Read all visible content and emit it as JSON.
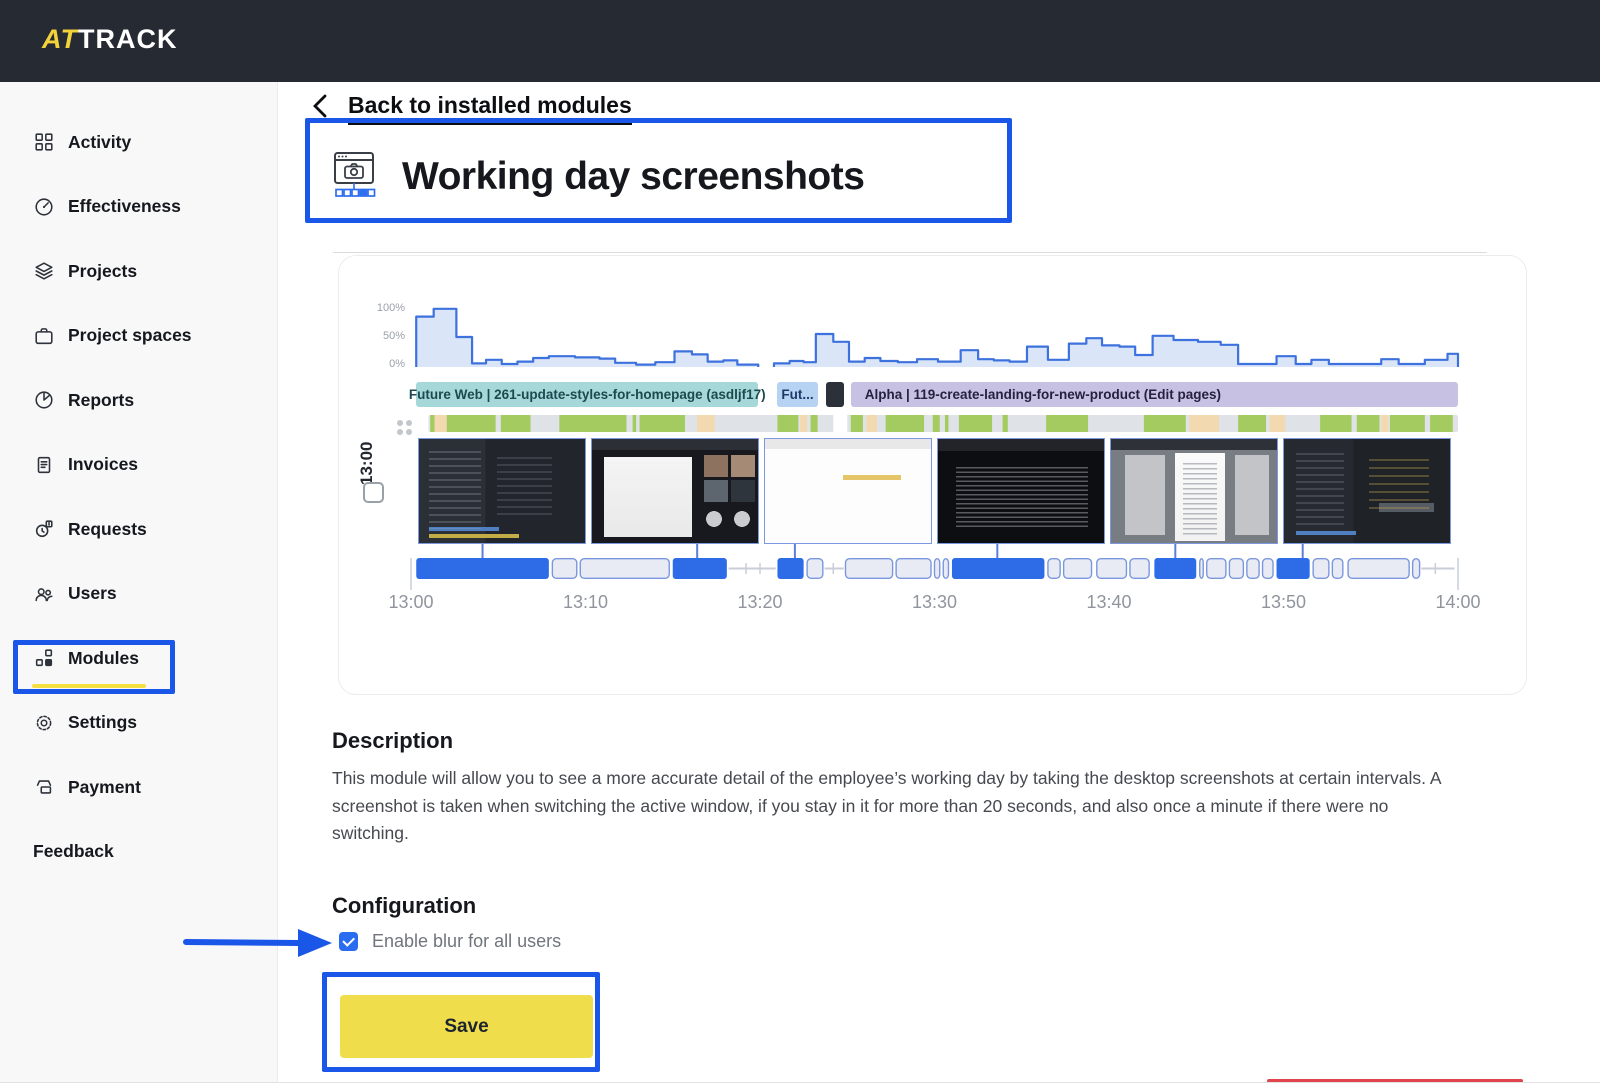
{
  "app": {
    "logo_primary": "AT",
    "logo_secondary": "TRACK"
  },
  "sidebar": {
    "items": [
      {
        "label": "Activity",
        "icon": "grid-icon"
      },
      {
        "label": "Effectiveness",
        "icon": "gauge-icon"
      },
      {
        "label": "Projects",
        "icon": "layers-icon"
      },
      {
        "label": "Project spaces",
        "icon": "briefcase-icon"
      },
      {
        "label": "Reports",
        "icon": "pie-chart-icon"
      },
      {
        "label": "Invoices",
        "icon": "invoice-icon"
      },
      {
        "label": "Requests",
        "icon": "request-clock-icon"
      },
      {
        "label": "Users",
        "icon": "users-icon"
      },
      {
        "label": "Modules",
        "icon": "modules-icon",
        "active": true
      },
      {
        "label": "Settings",
        "icon": "gear-icon"
      },
      {
        "label": "Payment",
        "icon": "payment-icon"
      }
    ],
    "footer_link": "Feedback"
  },
  "main": {
    "back_link": "Back to installed modules",
    "module_title": "Working day screenshots",
    "preview": {
      "row_time_label": "13:00",
      "y_axis_labels": [
        "100%",
        "50%",
        "0%"
      ],
      "time_labels": [
        "13:00",
        "13:10",
        "13:20",
        "13:30",
        "13:40",
        "13:50",
        "14:00"
      ],
      "tasks": [
        {
          "label": "Future Web | 261-update-styles-for-homepage (asdljf17)",
          "color": "#a6d8d9",
          "text_color": "#1d4a4e",
          "from": 0.3,
          "to": 19.9,
          "align": "center"
        },
        {
          "label": "Fut...",
          "color": "#b7d3f4",
          "text_color": "#1e3a66",
          "from": 21.0,
          "to": 23.3,
          "align": "center"
        },
        {
          "label": "",
          "color": "#2c3038",
          "text_color": "#ffffff",
          "from": 23.8,
          "to": 24.8,
          "align": "center"
        },
        {
          "label": "Alpha | 119-create-landing-for-new-product (Edit pages)",
          "color": "#c7c1e3",
          "text_color": "#27213f",
          "from": 25.2,
          "to": 60,
          "align": "left"
        }
      ],
      "chart_data": {
        "type": "step-area",
        "x_unit": "minutes after 13:00",
        "y_unit": "activity percent",
        "ylim": [
          0,
          100
        ],
        "segments": [
          {
            "end": 19.9,
            "points": [
              [
                0.3,
                84
              ],
              [
                1.3,
                97
              ],
              [
                2.6,
                50
              ],
              [
                3.5,
                6
              ],
              [
                4.3,
                12
              ],
              [
                5.2,
                5
              ],
              [
                6.1,
                9
              ],
              [
                7.0,
                15
              ],
              [
                7.9,
                18
              ],
              [
                9.4,
                16
              ],
              [
                10.8,
                14
              ],
              [
                11.7,
                7
              ],
              [
                12.9,
                4
              ],
              [
                14.0,
                8
              ],
              [
                15.1,
                26
              ],
              [
                16.1,
                21
              ],
              [
                17.0,
                9
              ],
              [
                17.9,
                11
              ],
              [
                18.7,
                4
              ]
            ]
          },
          {
            "end": 60,
            "points": [
              [
                20.8,
                6
              ],
              [
                21.7,
                10
              ],
              [
                22.5,
                8
              ],
              [
                23.2,
                55
              ],
              [
                24.2,
                42
              ],
              [
                25.1,
                9
              ],
              [
                26.0,
                15
              ],
              [
                26.9,
                10
              ],
              [
                27.9,
                8
              ],
              [
                29.0,
                13
              ],
              [
                30.2,
                9
              ],
              [
                31.5,
                28
              ],
              [
                32.5,
                13
              ],
              [
                33.4,
                11
              ],
              [
                34.3,
                9
              ],
              [
                35.3,
                34
              ],
              [
                36.5,
                12
              ],
              [
                37.7,
                39
              ],
              [
                38.7,
                48
              ],
              [
                39.6,
                36
              ],
              [
                40.6,
                34
              ],
              [
                41.5,
                20
              ],
              [
                42.5,
                52
              ],
              [
                43.7,
                45
              ],
              [
                45.1,
                42
              ],
              [
                46.4,
                37
              ],
              [
                47.4,
                5
              ],
              [
                49.6,
                18
              ],
              [
                50.7,
                5
              ],
              [
                51.6,
                12
              ],
              [
                52.6,
                5
              ],
              [
                55.6,
                13
              ],
              [
                56.6,
                5
              ],
              [
                58.1,
                12
              ],
              [
                59.4,
                22
              ]
            ]
          }
        ]
      },
      "activity_strip": {
        "base": {
          "from": 1.0,
          "to": 60
        },
        "gaps": [
          {
            "from": 24.2,
            "to": 25.0
          }
        ],
        "segments": [
          {
            "from": 1.1,
            "to": 1.35,
            "color": "#a4cb60"
          },
          {
            "from": 1.35,
            "to": 2.05,
            "color": "#f2d9b0"
          },
          {
            "from": 2.05,
            "to": 4.85,
            "color": "#a4cb60"
          },
          {
            "from": 5.15,
            "to": 6.85,
            "color": "#a4cb60"
          },
          {
            "from": 8.5,
            "to": 12.35,
            "color": "#a4cb60"
          },
          {
            "from": 12.7,
            "to": 12.9,
            "color": "#a4cb60"
          },
          {
            "from": 13.1,
            "to": 15.7,
            "color": "#a4cb60"
          },
          {
            "from": 16.4,
            "to": 17.4,
            "color": "#f2d9b0"
          },
          {
            "from": 21.0,
            "to": 22.2,
            "color": "#a4cb60"
          },
          {
            "from": 22.3,
            "to": 22.7,
            "color": "#f2d9b0"
          },
          {
            "from": 22.9,
            "to": 23.3,
            "color": "#a4cb60"
          },
          {
            "from": 25.2,
            "to": 25.9,
            "color": "#a4cb60"
          },
          {
            "from": 26.1,
            "to": 26.7,
            "color": "#f2d9b0"
          },
          {
            "from": 27.2,
            "to": 29.4,
            "color": "#a4cb60"
          },
          {
            "from": 29.9,
            "to": 30.3,
            "color": "#a4cb60"
          },
          {
            "from": 30.6,
            "to": 30.8,
            "color": "#a4cb60"
          },
          {
            "from": 31.4,
            "to": 33.3,
            "color": "#a4cb60"
          },
          {
            "from": 33.9,
            "to": 34.2,
            "color": "#a4cb60"
          },
          {
            "from": 36.4,
            "to": 38.8,
            "color": "#a4cb60"
          },
          {
            "from": 42.0,
            "to": 44.4,
            "color": "#a4cb60"
          },
          {
            "from": 44.6,
            "to": 46.3,
            "color": "#f2d9b0"
          },
          {
            "from": 47.4,
            "to": 49.0,
            "color": "#a4cb60"
          },
          {
            "from": 49.2,
            "to": 50.1,
            "color": "#f2d9b0"
          },
          {
            "from": 52.1,
            "to": 53.9,
            "color": "#a4cb60"
          },
          {
            "from": 54.2,
            "to": 55.5,
            "color": "#a4cb60"
          },
          {
            "from": 55.6,
            "to": 56.0,
            "color": "#f2d9b0"
          },
          {
            "from": 56.1,
            "to": 58.1,
            "color": "#a4cb60"
          },
          {
            "from": 58.4,
            "to": 59.7,
            "color": "#a4cb60"
          }
        ]
      },
      "screenshots": [
        {
          "kind": "code-editor-dark"
        },
        {
          "kind": "video-call"
        },
        {
          "kind": "blank-page"
        },
        {
          "kind": "terminal-log"
        },
        {
          "kind": "document-review"
        },
        {
          "kind": "code-editor-dark-2"
        }
      ],
      "timeline": {
        "connectors": [
          4.1,
          16.4,
          22.0,
          33.6,
          43.8,
          51.1
        ],
        "segments": [
          {
            "type": "filled",
            "from": 0.3,
            "to": 7.9
          },
          {
            "type": "empty",
            "from": 8.1,
            "to": 9.5
          },
          {
            "type": "empty",
            "from": 9.7,
            "to": 14.8
          },
          {
            "type": "filled",
            "from": 15.0,
            "to": 18.1
          },
          {
            "type": "gap",
            "from": 18.2,
            "to": 20.9,
            "ticks": [
              19.2,
              20.0
            ]
          },
          {
            "type": "filled",
            "from": 21.0,
            "to": 22.5
          },
          {
            "type": "empty",
            "from": 22.7,
            "to": 23.6
          },
          {
            "type": "gap",
            "from": 23.7,
            "to": 24.8,
            "ticks": [
              24.2
            ]
          },
          {
            "type": "empty",
            "from": 24.9,
            "to": 27.6
          },
          {
            "type": "empty",
            "from": 27.8,
            "to": 29.8
          },
          {
            "type": "empty",
            "from": 30.0,
            "to": 30.3
          },
          {
            "type": "empty",
            "from": 30.5,
            "to": 30.8
          },
          {
            "type": "filled",
            "from": 31.0,
            "to": 36.3
          },
          {
            "type": "empty",
            "from": 36.5,
            "to": 37.2
          },
          {
            "type": "empty",
            "from": 37.4,
            "to": 39.0
          },
          {
            "type": "empty",
            "from": 39.3,
            "to": 41.0
          },
          {
            "type": "empty",
            "from": 41.2,
            "to": 42.3
          },
          {
            "type": "filled",
            "from": 42.6,
            "to": 45.0
          },
          {
            "type": "empty",
            "from": 45.2,
            "to": 45.4
          },
          {
            "type": "empty",
            "from": 45.6,
            "to": 46.7
          },
          {
            "type": "empty",
            "from": 46.9,
            "to": 47.7
          },
          {
            "type": "empty",
            "from": 47.9,
            "to": 48.6
          },
          {
            "type": "empty",
            "from": 48.8,
            "to": 49.4
          },
          {
            "type": "filled",
            "from": 49.6,
            "to": 51.5
          },
          {
            "type": "empty",
            "from": 51.7,
            "to": 52.6
          },
          {
            "type": "empty",
            "from": 52.8,
            "to": 53.4
          },
          {
            "type": "empty",
            "from": 53.7,
            "to": 57.2
          },
          {
            "type": "empty",
            "from": 57.4,
            "to": 57.8
          },
          {
            "type": "gap",
            "from": 57.9,
            "to": 59.8,
            "ticks": [
              58.7
            ]
          }
        ]
      }
    },
    "description": {
      "heading": "Description",
      "body_lines": [
        "This module will allow you to see a more accurate detail of the employee’s working day by taking the desktop screenshots at certain intervals. A",
        "screenshot is taken when switching the active window, if you stay in it for more than 20 seconds, and also once a minute if there were no",
        "switching."
      ]
    },
    "configuration": {
      "heading": "Configuration",
      "checkbox_label": "Enable blur for all users",
      "checked": true
    },
    "save_label": "Save"
  },
  "colors": {
    "annotation_blue": "#1a56e8",
    "logo_yellow": "#f2d33c",
    "accent_yellow": "#f0dd4b",
    "active_underline_yellow": "#f5e041",
    "timeline_blue": "#2e6be6",
    "timeline_empty_fill": "#e9ebf4",
    "timeline_empty_border": "#7a97dd",
    "gap_line_gray": "#c9cdd8",
    "connector_blue": "#5b7fd9",
    "chart_line": "#3d72de",
    "chart_fill": "#dbe5f8",
    "strip_base_gray": "#dfe2e6",
    "strip_green": "#a4cb60",
    "strip_tan": "#f2d9b0",
    "time_label_gray": "#90959d",
    "red_marker": "#e2444d"
  }
}
